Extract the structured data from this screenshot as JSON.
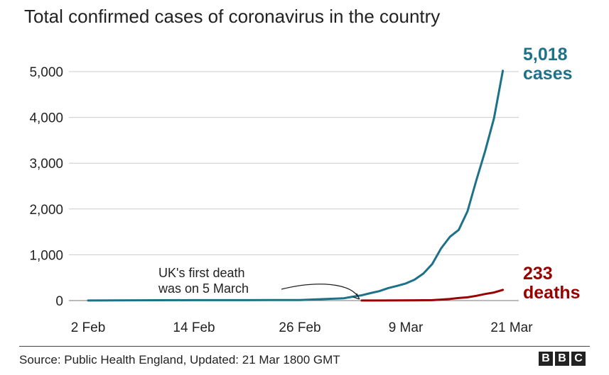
{
  "chart_data": {
    "type": "line",
    "title": "Total confirmed cases of coronavirus in the country",
    "xlabel": "",
    "ylabel": "",
    "ylim": [
      0,
      5000
    ],
    "y_ticks": [
      0,
      1000,
      2000,
      3000,
      4000,
      5000
    ],
    "y_tick_labels": [
      "0",
      "1,000",
      "2,000",
      "3,000",
      "4,000",
      "5,000"
    ],
    "x_ticks": [
      "2 Feb",
      "14 Feb",
      "26 Feb",
      "9 Mar",
      "21 Mar"
    ],
    "x_ticks_day_of_year": [
      33,
      45,
      57,
      69,
      81
    ],
    "grid": "horizontal",
    "series": [
      {
        "name": "cases",
        "color": "#1d7189",
        "end_value_label": "5,018",
        "end_label_word": "cases",
        "points": [
          {
            "date": "2 Feb",
            "value": 2
          },
          {
            "date": "10 Feb",
            "value": 8
          },
          {
            "date": "14 Feb",
            "value": 9
          },
          {
            "date": "20 Feb",
            "value": 9
          },
          {
            "date": "26 Feb",
            "value": 13
          },
          {
            "date": "1 Mar",
            "value": 36
          },
          {
            "date": "3 Mar",
            "value": 51
          },
          {
            "date": "4 Mar",
            "value": 85
          },
          {
            "date": "5 Mar",
            "value": 115
          },
          {
            "date": "6 Mar",
            "value": 163
          },
          {
            "date": "7 Mar",
            "value": 206
          },
          {
            "date": "8 Mar",
            "value": 273
          },
          {
            "date": "9 Mar",
            "value": 321
          },
          {
            "date": "10 Mar",
            "value": 373
          },
          {
            "date": "11 Mar",
            "value": 456
          },
          {
            "date": "12 Mar",
            "value": 590
          },
          {
            "date": "13 Mar",
            "value": 798
          },
          {
            "date": "14 Mar",
            "value": 1140
          },
          {
            "date": "15 Mar",
            "value": 1391
          },
          {
            "date": "16 Mar",
            "value": 1543
          },
          {
            "date": "17 Mar",
            "value": 1950
          },
          {
            "date": "18 Mar",
            "value": 2626
          },
          {
            "date": "19 Mar",
            "value": 3269
          },
          {
            "date": "20 Mar",
            "value": 3983
          },
          {
            "date": "21 Mar",
            "value": 5018
          }
        ]
      },
      {
        "name": "deaths",
        "color": "#990000",
        "end_value_label": "233",
        "end_label_word": "deaths",
        "points": [
          {
            "date": "5 Mar",
            "value": 1
          },
          {
            "date": "7 Mar",
            "value": 2
          },
          {
            "date": "9 Mar",
            "value": 4
          },
          {
            "date": "11 Mar",
            "value": 6
          },
          {
            "date": "13 Mar",
            "value": 10
          },
          {
            "date": "14 Mar",
            "value": 21
          },
          {
            "date": "15 Mar",
            "value": 35
          },
          {
            "date": "16 Mar",
            "value": 55
          },
          {
            "date": "17 Mar",
            "value": 71
          },
          {
            "date": "18 Mar",
            "value": 104
          },
          {
            "date": "19 Mar",
            "value": 144
          },
          {
            "date": "20 Mar",
            "value": 177
          },
          {
            "date": "21 Mar",
            "value": 233
          }
        ]
      }
    ],
    "annotation": {
      "lines": [
        "UK's first death",
        "was on 5 March"
      ],
      "date": "5 Mar"
    }
  },
  "footer": {
    "source": "Source: Public Health England, Updated: 21 Mar 1800 GMT",
    "logo_letters": [
      "B",
      "B",
      "C"
    ]
  }
}
